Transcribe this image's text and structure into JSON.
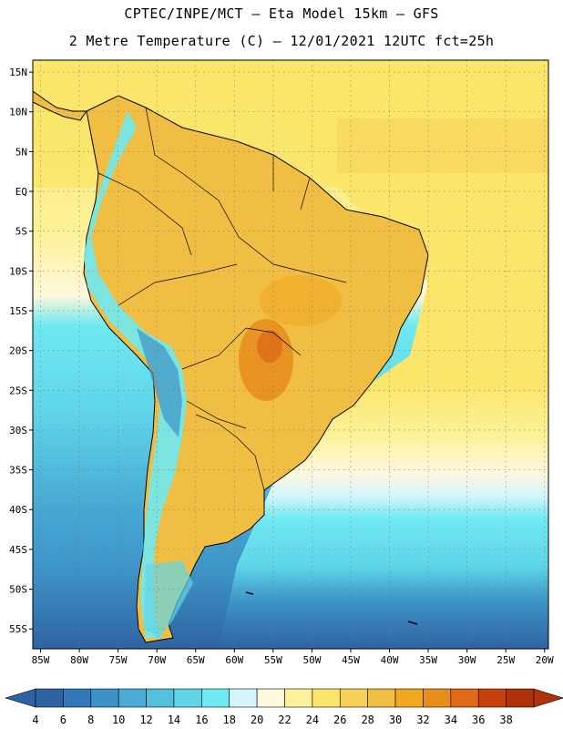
{
  "header": {
    "title_line1": "CPTEC/INPE/MCT —  Eta Model 15km — GFS",
    "title_line2": "2 Metre Temperature (C) — 12/01/2021 12UTC fct=25h"
  },
  "map": {
    "lat_labels": [
      "15N",
      "10N",
      "5N",
      "EQ",
      "5S",
      "10S",
      "15S",
      "20S",
      "25S",
      "30S",
      "35S",
      "40S",
      "45S",
      "50S",
      "55S"
    ],
    "lon_labels": [
      "85W",
      "80W",
      "75W",
      "70W",
      "65W",
      "60W",
      "55W",
      "50W",
      "45W",
      "40W",
      "35W",
      "30W",
      "25W",
      "20W"
    ],
    "lat_values": [
      15,
      10,
      5,
      0,
      -5,
      -10,
      -15,
      -20,
      -25,
      -30,
      -35,
      -40,
      -45,
      -50,
      -55
    ],
    "lon_values": [
      -85,
      -80,
      -75,
      -70,
      -65,
      -60,
      -55,
      -50,
      -45,
      -40,
      -35,
      -30,
      -25,
      -20
    ],
    "lat_range": [
      -57.5,
      16.5
    ],
    "lon_range": [
      -86,
      -19.5
    ]
  },
  "legend": {
    "values": [
      "4",
      "6",
      "8",
      "10",
      "12",
      "14",
      "16",
      "18",
      "20",
      "22",
      "24",
      "26",
      "28",
      "30",
      "32",
      "34",
      "36",
      "38"
    ],
    "colors": [
      "#2e63a3",
      "#3378b8",
      "#3d93c8",
      "#49abd6",
      "#54c0e0",
      "#5fd5e8",
      "#6fe9f1",
      "#d5f5fb",
      "#fff8dc",
      "#fdf29a",
      "#fbe56a",
      "#f7d05a",
      "#f1be44",
      "#f0a81f",
      "#e88c1c",
      "#e06a17",
      "#c8410d",
      "#b03209"
    ],
    "arrow_left_color": "#2e63a3",
    "arrow_right_color": "#b03209"
  },
  "colors": {
    "ocean_warm": "#fbe56a",
    "ocean_mid": "#5fd5e8",
    "ocean_cold": "#3d93c8",
    "land": "#f1be44",
    "andes": "#6fe9f1",
    "hotspot": "#e88c1c"
  }
}
